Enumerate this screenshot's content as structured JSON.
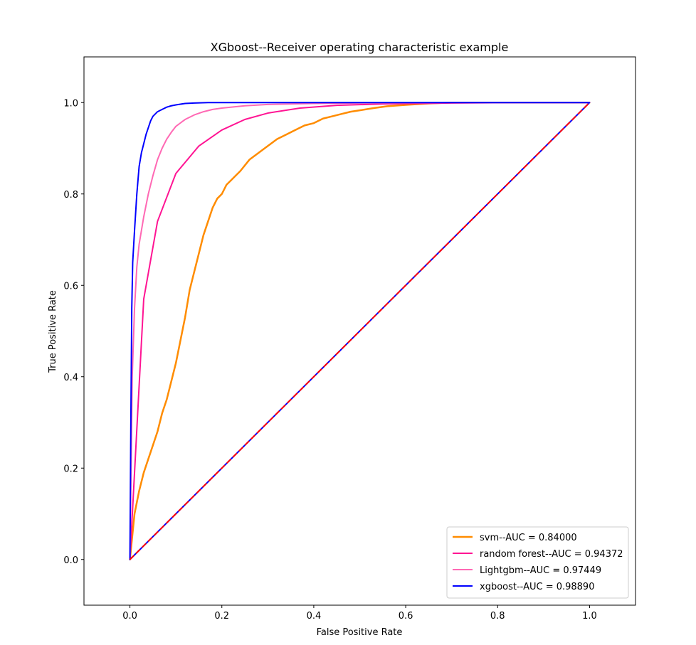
{
  "chart_data": {
    "type": "line",
    "title": "XGboost--Receiver operating characteristic example",
    "xlabel": "False Positive Rate",
    "ylabel": "True Positive Rate",
    "xlim": [
      -0.1,
      1.1
    ],
    "ylim": [
      -0.1,
      1.1
    ],
    "xticks": [
      "0.0",
      "0.2",
      "0.4",
      "0.6",
      "0.8",
      "1.0"
    ],
    "yticks": [
      "0.0",
      "0.2",
      "0.4",
      "0.6",
      "0.8",
      "1.0"
    ],
    "grid": false,
    "legend_position": "lower right",
    "series": [
      {
        "name": "svm--AUC = 0.84000",
        "color": "#ff8c00",
        "style": "solid",
        "x": [
          0,
          0.005,
          0.01,
          0.02,
          0.03,
          0.04,
          0.05,
          0.06,
          0.07,
          0.08,
          0.09,
          0.1,
          0.11,
          0.12,
          0.13,
          0.14,
          0.15,
          0.16,
          0.17,
          0.18,
          0.19,
          0.2,
          0.21,
          0.22,
          0.23,
          0.24,
          0.26,
          0.28,
          0.3,
          0.32,
          0.34,
          0.36,
          0.38,
          0.4,
          0.42,
          0.44,
          0.46,
          0.48,
          0.5,
          0.53,
          0.56,
          0.6,
          0.65,
          0.7,
          0.8,
          0.9,
          1.0
        ],
        "y": [
          0,
          0.05,
          0.1,
          0.15,
          0.19,
          0.22,
          0.25,
          0.28,
          0.32,
          0.35,
          0.39,
          0.43,
          0.48,
          0.53,
          0.59,
          0.63,
          0.67,
          0.71,
          0.74,
          0.77,
          0.79,
          0.8,
          0.82,
          0.83,
          0.84,
          0.85,
          0.875,
          0.89,
          0.905,
          0.92,
          0.93,
          0.94,
          0.95,
          0.955,
          0.965,
          0.97,
          0.975,
          0.98,
          0.983,
          0.988,
          0.992,
          0.995,
          0.998,
          1.0,
          1.0,
          1.0,
          1.0
        ]
      },
      {
        "name": "random forest--AUC = 0.94372",
        "color": "#ff1493",
        "style": "solid",
        "x": [
          0,
          0.03,
          0.06,
          0.1,
          0.15,
          0.2,
          0.25,
          0.3,
          0.37,
          0.45,
          0.55,
          0.7,
          0.85,
          1.0
        ],
        "y": [
          0,
          0.57,
          0.74,
          0.845,
          0.905,
          0.94,
          0.963,
          0.977,
          0.988,
          0.994,
          0.997,
          0.999,
          1.0,
          1.0
        ]
      },
      {
        "name": "Lightgbm--AUC = 0.97449",
        "color": "#ff69b4",
        "style": "solid",
        "x": [
          0,
          0.005,
          0.01,
          0.015,
          0.02,
          0.025,
          0.03,
          0.04,
          0.05,
          0.06,
          0.07,
          0.08,
          0.09,
          0.1,
          0.12,
          0.14,
          0.16,
          0.18,
          0.2,
          0.25,
          0.3,
          0.4,
          0.5,
          0.7,
          1.0
        ],
        "y": [
          0,
          0.4,
          0.55,
          0.64,
          0.69,
          0.72,
          0.75,
          0.8,
          0.84,
          0.875,
          0.9,
          0.92,
          0.935,
          0.948,
          0.963,
          0.973,
          0.98,
          0.985,
          0.988,
          0.993,
          0.996,
          0.998,
          0.999,
          1.0,
          1.0
        ]
      },
      {
        "name": "xgboost--AUC = 0.98890",
        "color": "#0000ff",
        "style": "solid",
        "x": [
          0,
          0.002,
          0.004,
          0.006,
          0.01,
          0.015,
          0.02,
          0.025,
          0.03,
          0.035,
          0.04,
          0.045,
          0.05,
          0.06,
          0.07,
          0.08,
          0.09,
          0.1,
          0.12,
          0.14,
          0.17,
          0.2,
          0.25,
          0.3,
          0.4,
          0.6,
          0.8,
          1.0
        ],
        "y": [
          0,
          0.3,
          0.55,
          0.65,
          0.72,
          0.8,
          0.86,
          0.89,
          0.91,
          0.93,
          0.945,
          0.96,
          0.97,
          0.98,
          0.985,
          0.99,
          0.993,
          0.995,
          0.998,
          0.999,
          1.0,
          1.0,
          1.0,
          1.0,
          1.0,
          1.0,
          1.0,
          1.0
        ]
      }
    ],
    "reference_line": {
      "color": "#ff0000",
      "underlay_color": "#0000ff",
      "style": "dashed",
      "x": [
        0,
        1
      ],
      "y": [
        0,
        1
      ]
    }
  }
}
